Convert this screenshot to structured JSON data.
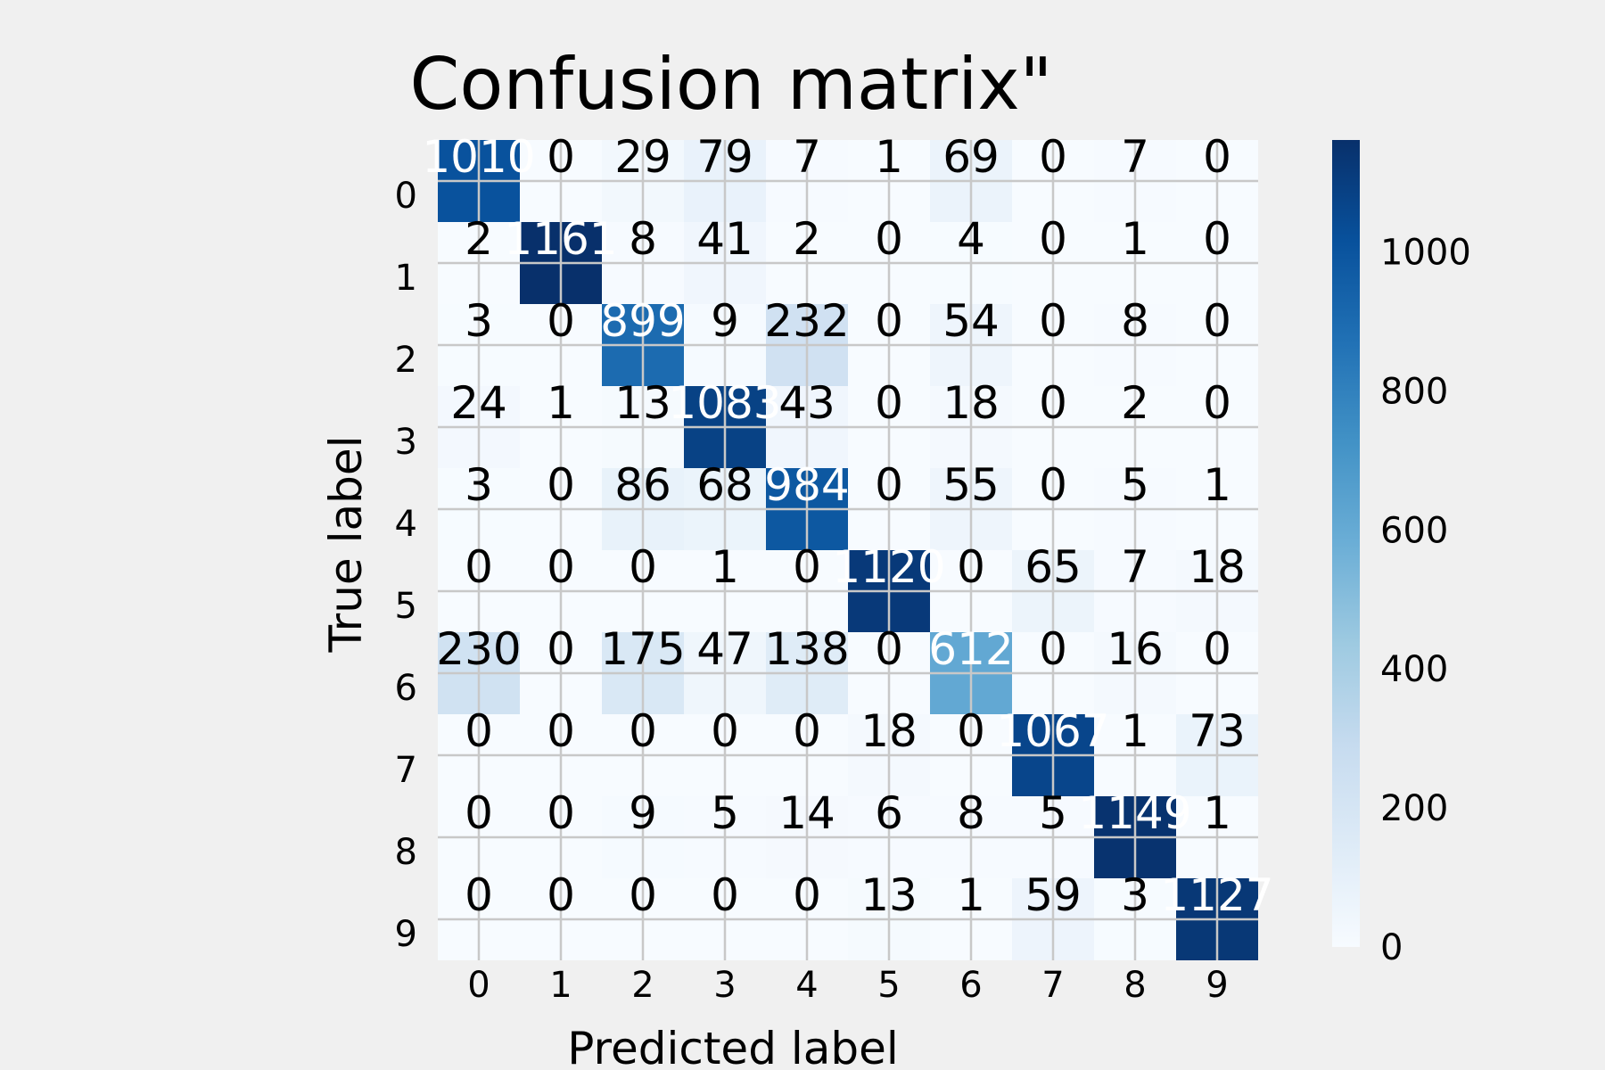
{
  "chart_data": {
    "type": "heatmap",
    "title": "Confusion matrix\"",
    "xlabel": "Predicted label",
    "ylabel": "True label",
    "x_categories": [
      "0",
      "1",
      "2",
      "3",
      "4",
      "5",
      "6",
      "7",
      "8",
      "9"
    ],
    "y_categories": [
      "0",
      "1",
      "2",
      "3",
      "4",
      "5",
      "6",
      "7",
      "8",
      "9"
    ],
    "values": [
      [
        1010,
        0,
        29,
        79,
        7,
        1,
        69,
        0,
        7,
        0
      ],
      [
        2,
        1161,
        8,
        41,
        2,
        0,
        4,
        0,
        1,
        0
      ],
      [
        3,
        0,
        899,
        9,
        232,
        0,
        54,
        0,
        8,
        0
      ],
      [
        24,
        1,
        13,
        1083,
        43,
        0,
        18,
        0,
        2,
        0
      ],
      [
        3,
        0,
        86,
        68,
        984,
        0,
        55,
        0,
        5,
        1
      ],
      [
        0,
        0,
        0,
        1,
        0,
        1120,
        0,
        65,
        7,
        18
      ],
      [
        230,
        0,
        175,
        47,
        138,
        0,
        612,
        0,
        16,
        0
      ],
      [
        0,
        0,
        0,
        0,
        0,
        18,
        0,
        1067,
        1,
        73
      ],
      [
        0,
        0,
        9,
        5,
        14,
        6,
        8,
        5,
        1149,
        1
      ],
      [
        0,
        0,
        0,
        0,
        0,
        13,
        1,
        59,
        3,
        1127
      ]
    ],
    "colormap": "Blues",
    "color_range": [
      0,
      1161
    ],
    "colorbar_ticks": [
      0,
      200,
      400,
      600,
      800,
      1000
    ],
    "grid": true,
    "colors": {
      "background": "#f0f0f0",
      "grid": "#c8c8c8",
      "text_dark": "#000000",
      "text_light": "#ffffff"
    }
  }
}
